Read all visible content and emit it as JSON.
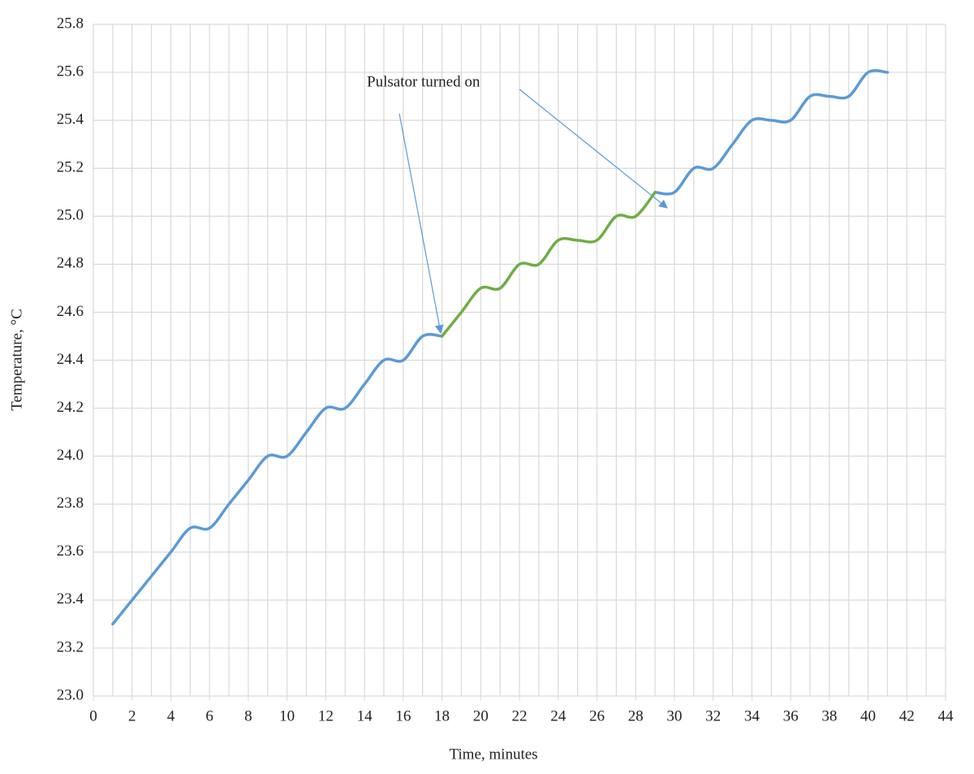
{
  "chart_data": {
    "type": "line",
    "x_label": "Time, minutes",
    "y_label": "Temperature, °C",
    "annotation": "Pulsator turned on",
    "x": [
      1,
      2,
      3,
      4,
      5,
      6,
      7,
      8,
      9,
      10,
      11,
      12,
      13,
      14,
      15,
      16,
      17,
      18,
      19,
      20,
      21,
      22,
      23,
      24,
      25,
      26,
      27,
      28,
      29,
      30,
      31,
      32,
      33,
      34,
      35,
      36,
      37,
      38,
      39,
      40,
      41
    ],
    "series": [
      {
        "color": "#5b9bd5",
        "values": [
          23.3,
          23.4,
          23.5,
          23.6,
          23.7,
          23.7,
          23.8,
          23.9,
          24.0,
          24.0,
          24.1,
          24.2,
          24.2,
          24.3,
          24.4,
          24.4,
          24.5,
          24.5,
          null,
          null,
          null,
          null,
          null,
          null,
          null,
          null,
          null,
          null,
          25.1,
          25.1,
          25.2,
          25.2,
          25.3,
          25.4,
          25.4,
          25.4,
          25.5,
          25.5,
          25.5,
          25.6,
          25.6
        ]
      },
      {
        "color": "#70ad47",
        "values": [
          null,
          null,
          null,
          null,
          null,
          null,
          null,
          null,
          null,
          null,
          null,
          null,
          null,
          null,
          null,
          null,
          null,
          24.5,
          24.6,
          24.7,
          24.7,
          24.8,
          24.8,
          24.9,
          24.9,
          24.9,
          25.0,
          25.0,
          25.1,
          null,
          null,
          null,
          null,
          null,
          null,
          null,
          null,
          null,
          null,
          null,
          null
        ]
      }
    ],
    "xlim": [
      0,
      44
    ],
    "ylim": [
      23.0,
      25.8
    ],
    "xticks": [
      0,
      2,
      4,
      6,
      8,
      10,
      12,
      14,
      16,
      18,
      20,
      22,
      24,
      26,
      28,
      30,
      32,
      34,
      36,
      38,
      40,
      42,
      44
    ],
    "xminorticks": [
      1,
      3,
      5,
      7,
      9,
      11,
      13,
      15,
      17,
      19,
      21,
      23,
      25,
      27,
      29,
      31,
      33,
      35,
      37,
      39,
      41,
      43
    ],
    "yticks": [
      {
        "value": 23.0,
        "label": "23.0"
      },
      23.2,
      23.4,
      23.6,
      23.8,
      {
        "value": 24.0,
        "label": "24.0"
      },
      24.2,
      24.4,
      24.6,
      24.8,
      {
        "value": 25.0,
        "label": "25.0"
      },
      25.2,
      25.4,
      25.6,
      25.8
    ],
    "grid": true
  }
}
